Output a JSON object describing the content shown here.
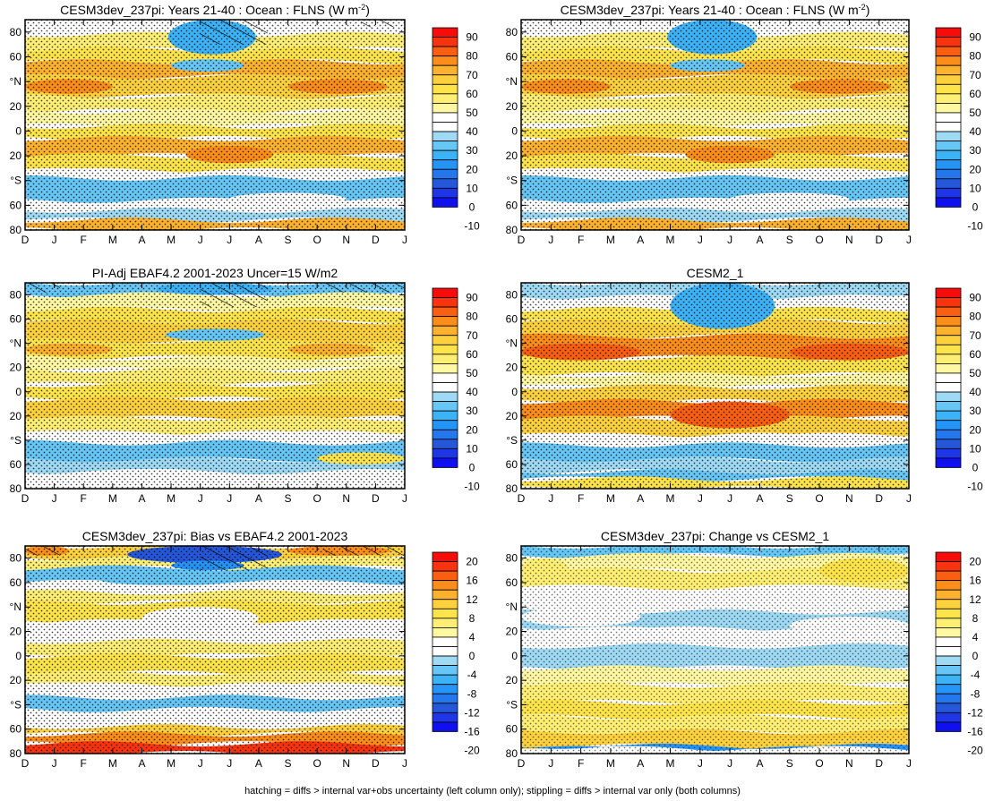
{
  "chart_data": [
    {
      "type": "heatmap",
      "title": "CESM3dev_237pi: Years 21-40 : Ocean : FLNS (W m",
      "title_sup": "-2",
      "title_tail": ")",
      "x_ticks": [
        "D",
        "J",
        "F",
        "M",
        "A",
        "M",
        "J",
        "J",
        "A",
        "S",
        "O",
        "N",
        "D",
        "J"
      ],
      "y_ticks": [
        "80",
        "60",
        "°N",
        "20",
        "0",
        "20",
        "°S",
        "60",
        "80"
      ],
      "colorbar": [
        "90",
        "80",
        "70",
        "60",
        "50",
        "40",
        "30",
        "20",
        "10",
        "0",
        "-10"
      ],
      "scale": "abs",
      "hatching": true,
      "field": "model"
    },
    {
      "type": "heatmap",
      "title": "CESM3dev_237pi: Years 21-40 : Ocean : FLNS (W m",
      "title_sup": "-2",
      "title_tail": ")",
      "x_ticks": [
        "D",
        "J",
        "F",
        "M",
        "A",
        "M",
        "J",
        "J",
        "A",
        "S",
        "O",
        "N",
        "D",
        "J"
      ],
      "y_ticks": [
        "80",
        "60",
        "°N",
        "20",
        "0",
        "20",
        "°S",
        "60",
        "80"
      ],
      "colorbar": [
        "90",
        "80",
        "70",
        "60",
        "50",
        "40",
        "30",
        "20",
        "10",
        "0",
        "-10"
      ],
      "scale": "abs",
      "hatching": false,
      "field": "model"
    },
    {
      "type": "heatmap",
      "title": "PI-Adj EBAF4.2 2001-2023 Uncer=15 W/m2",
      "x_ticks": [
        "D",
        "J",
        "F",
        "M",
        "A",
        "M",
        "J",
        "J",
        "A",
        "S",
        "O",
        "N",
        "D",
        "J"
      ],
      "y_ticks": [
        "80",
        "60",
        "°N",
        "20",
        "0",
        "20",
        "°S",
        "60",
        "80"
      ],
      "colorbar": [
        "90",
        "80",
        "70",
        "60",
        "50",
        "40",
        "30",
        "20",
        "10",
        "0",
        "-10"
      ],
      "scale": "abs",
      "hatching": true,
      "field": "obs"
    },
    {
      "type": "heatmap",
      "title": "CESM2_1",
      "x_ticks": [
        "D",
        "J",
        "F",
        "M",
        "A",
        "M",
        "J",
        "J",
        "A",
        "S",
        "O",
        "N",
        "D",
        "J"
      ],
      "y_ticks": [
        "80",
        "60",
        "°N",
        "20",
        "0",
        "20",
        "°S",
        "60",
        "80"
      ],
      "colorbar": [
        "90",
        "80",
        "70",
        "60",
        "50",
        "40",
        "30",
        "20",
        "10",
        "0",
        "-10"
      ],
      "scale": "abs",
      "hatching": false,
      "field": "cesm2"
    },
    {
      "type": "heatmap",
      "title": "CESM3dev_237pi: Bias vs EBAF4.2 2001-2023",
      "x_ticks": [
        "D",
        "J",
        "F",
        "M",
        "A",
        "M",
        "J",
        "J",
        "A",
        "S",
        "O",
        "N",
        "D",
        "J"
      ],
      "y_ticks": [
        "80",
        "60",
        "°N",
        "20",
        "0",
        "20",
        "°S",
        "60",
        "80"
      ],
      "colorbar": [
        "20",
        "16",
        "12",
        "8",
        "4",
        "0",
        "-4",
        "-8",
        "-12",
        "-16",
        "-20"
      ],
      "scale": "diff",
      "hatching": true,
      "field": "bias"
    },
    {
      "type": "heatmap",
      "title": "CESM3dev_237pi: Change vs CESM2_1",
      "x_ticks": [
        "D",
        "J",
        "F",
        "M",
        "A",
        "M",
        "J",
        "J",
        "A",
        "S",
        "O",
        "N",
        "D",
        "J"
      ],
      "y_ticks": [
        "80",
        "60",
        "°N",
        "20",
        "0",
        "20",
        "°S",
        "60",
        "80"
      ],
      "colorbar": [
        "20",
        "16",
        "12",
        "8",
        "4",
        "0",
        "-4",
        "-8",
        "-12",
        "-16",
        "-20"
      ],
      "scale": "diff",
      "hatching": false,
      "field": "change"
    }
  ],
  "colors": {
    "abs": [
      "#f70c0c",
      "#f7340f",
      "#f95f12",
      "#fb8d1b",
      "#fcb12f",
      "#fcd13d",
      "#fde44a",
      "#feef74",
      "#fff8a3",
      "#ffffff",
      "#ffffff",
      "#9fdaf5",
      "#66c7f6",
      "#3cb2f7",
      "#2494f7",
      "#2477ec",
      "#2557d9",
      "#1f36e6",
      "#1010ef"
    ],
    "diff": [
      "#f70c0c",
      "#f7340f",
      "#f95f12",
      "#fb8d1b",
      "#fcb12f",
      "#fcd13d",
      "#fde44a",
      "#feef74",
      "#fff8a3",
      "#ffffff",
      "#ffffff",
      "#9fdaf5",
      "#66c7f6",
      "#3cb2f7",
      "#2494f7",
      "#2477ec",
      "#2557d9",
      "#1f36e6",
      "#1010ef"
    ]
  },
  "footer": "hatching = diffs > internal var+obs uncertainty (left column only); stippling = diffs > internal var only (both columns)"
}
